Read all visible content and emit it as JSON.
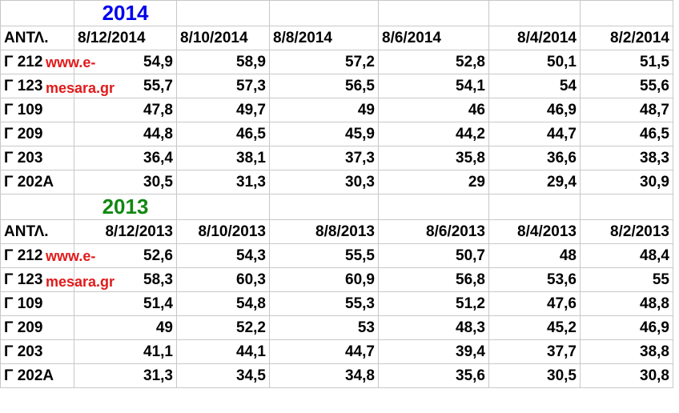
{
  "block2014": {
    "year": "2014",
    "header_label": "ΑΝΤΛ.",
    "dates": [
      "8/12/2014",
      "8/10/2014",
      "8/8/2014",
      "8/6/2014",
      "8/4/2014",
      "8/2/2014"
    ],
    "rows": [
      {
        "label": "Γ 212",
        "values": [
          "54,9",
          "58,9",
          "57,2",
          "52,8",
          "50,1",
          "51,5"
        ]
      },
      {
        "label": "Γ 123",
        "values": [
          "55,7",
          "57,3",
          "56,5",
          "54,1",
          "54",
          "55,6"
        ]
      },
      {
        "label": "Γ 109",
        "values": [
          "47,8",
          "49,7",
          "49",
          "46",
          "46,9",
          "48,7"
        ]
      },
      {
        "label": "Γ 209",
        "values": [
          "44,8",
          "46,5",
          "45,9",
          "44,2",
          "44,7",
          "46,5"
        ]
      },
      {
        "label": "Γ 203",
        "values": [
          "36,4",
          "38,1",
          "37,3",
          "35,8",
          "36,6",
          "38,3"
        ]
      },
      {
        "label": "Γ 202Α",
        "values": [
          "30,5",
          "31,3",
          "30,3",
          "29",
          "29,4",
          "30,9"
        ]
      }
    ],
    "watermark": [
      "www.e-",
      "mesara.gr"
    ]
  },
  "block2013": {
    "year": "2013",
    "header_label": "ΑΝΤΛ.",
    "dates": [
      "8/12/2013",
      "8/10/2013",
      "8/8/2013",
      "8/6/2013",
      "8/4/2013",
      "8/2/2013"
    ],
    "rows": [
      {
        "label": "Γ 212",
        "values": [
          "52,6",
          "54,3",
          "55,5",
          "50,7",
          "48",
          "48,4"
        ]
      },
      {
        "label": "Γ 123",
        "values": [
          "58,3",
          "60,3",
          "60,9",
          "56,8",
          "53,6",
          "55"
        ]
      },
      {
        "label": "Γ 109",
        "values": [
          "51,4",
          "54,8",
          "55,3",
          "51,2",
          "47,6",
          "48,8"
        ]
      },
      {
        "label": "Γ 209",
        "values": [
          "49",
          "52,2",
          "53",
          "48,3",
          "45,2",
          "46,9"
        ]
      },
      {
        "label": "Γ 203",
        "values": [
          "41,1",
          "44,1",
          "44,7",
          "39,4",
          "37,7",
          "38,8"
        ]
      },
      {
        "label": "Γ 202Α",
        "values": [
          "31,3",
          "34,5",
          "34,8",
          "35,6",
          "30,5",
          "30,8"
        ]
      }
    ],
    "watermark": [
      "www.e-",
      "mesara.gr"
    ]
  }
}
